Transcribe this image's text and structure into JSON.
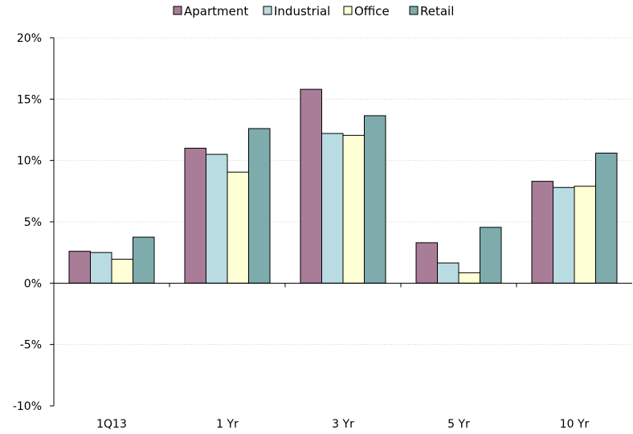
{
  "chart_data": {
    "type": "bar",
    "categories": [
      "1Q13",
      "1 Yr",
      "3 Yr",
      "5 Yr",
      "10 Yr"
    ],
    "series": [
      {
        "name": "Apartment",
        "color": "#A97C97",
        "values": [
          2.6,
          11.0,
          15.8,
          3.3,
          8.3
        ]
      },
      {
        "name": "Industrial",
        "color": "#B9DCE2",
        "values": [
          2.5,
          10.5,
          12.2,
          1.65,
          7.8
        ]
      },
      {
        "name": "Office",
        "color": "#FFFFD5",
        "values": [
          1.95,
          9.05,
          12.05,
          0.85,
          7.9
        ]
      },
      {
        "name": "Retail",
        "color": "#7EACAC",
        "values": [
          3.75,
          12.6,
          13.65,
          4.55,
          10.6
        ]
      }
    ],
    "ylim": [
      -10,
      20
    ],
    "yticks": [
      20,
      15,
      10,
      5,
      0,
      -5,
      -10
    ],
    "ytick_labels": [
      "20%",
      "15%",
      "10%",
      "5%",
      "0%",
      "-5%",
      "-10%"
    ],
    "grid": true,
    "legend_position": "top",
    "title": "",
    "xlabel": "",
    "ylabel": ""
  }
}
